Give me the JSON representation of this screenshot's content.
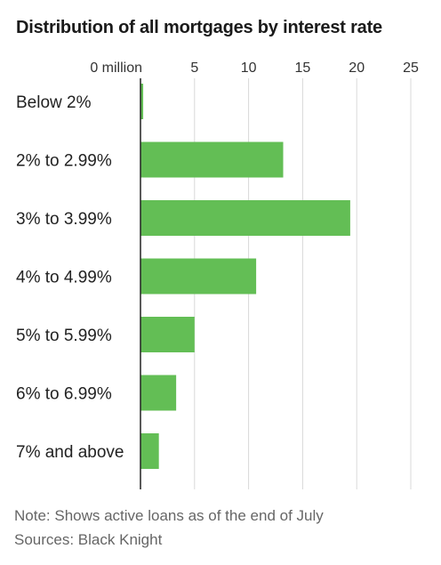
{
  "chart_data": {
    "type": "bar",
    "orientation": "horizontal",
    "title": "Distribution of all mortgages by interest rate",
    "categories": [
      "Below 2%",
      "2% to 2.99%",
      "3% to 3.99%",
      "4% to 4.99%",
      "5% to 5.99%",
      "6% to 6.99%",
      "7% and above"
    ],
    "values": [
      0.25,
      13.2,
      19.4,
      10.7,
      5.0,
      3.3,
      1.7
    ],
    "unit": "million",
    "xlim": [
      0,
      25
    ],
    "ticks": [
      0,
      5,
      10,
      15,
      20,
      25
    ],
    "tick_labels": [
      "0 million",
      "5",
      "10",
      "15",
      "20",
      "25"
    ],
    "grid": "vertical",
    "bar_color": "#63be55"
  },
  "footer": {
    "note": "Note: Shows active loans as of the end of July",
    "sources": "Sources: Black Knight"
  }
}
